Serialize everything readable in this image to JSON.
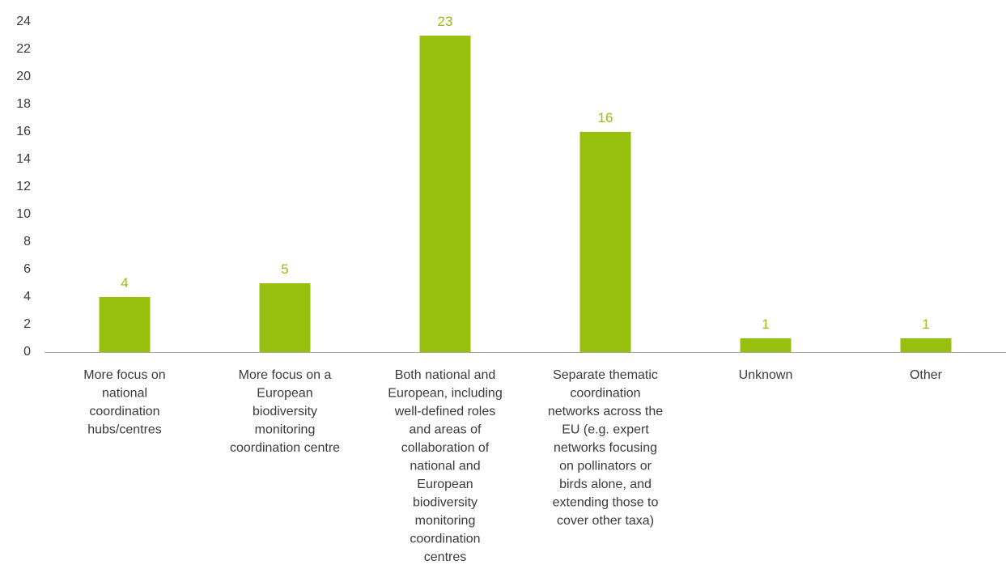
{
  "chart_data": {
    "type": "bar",
    "categories": [
      "More focus on national coordination hubs/centres",
      "More focus on a European biodiversity monitoring coordination centre",
      "Both national and European, including well-defined roles and areas of collaboration of national and European biodiversity monitoring coordination centres",
      "Separate thematic coordination networks across the EU (e.g. expert networks focusing on pollinators or birds alone, and extending those to cover other taxa)",
      "Unknown",
      "Other"
    ],
    "category_lines": [
      [
        "More focus on",
        "national",
        "coordination",
        "hubs/centres"
      ],
      [
        "More focus on a",
        "European",
        "biodiversity",
        "monitoring",
        "coordination centre"
      ],
      [
        "Both national and",
        "European, including",
        "well-defined roles",
        "and areas of",
        "collaboration of",
        "national and",
        "European",
        "biodiversity",
        "monitoring",
        "coordination",
        "centres"
      ],
      [
        "Separate thematic",
        "coordination",
        "networks across the",
        "EU (e.g. expert",
        "networks focusing",
        "on pollinators or",
        "birds alone, and",
        "extending those to",
        "cover other taxa)"
      ],
      [
        "Unknown"
      ],
      [
        "Other"
      ]
    ],
    "values": [
      4,
      5,
      23,
      16,
      1,
      1
    ],
    "ylim": [
      0,
      24
    ],
    "yticks": [
      0,
      2,
      4,
      6,
      8,
      10,
      12,
      14,
      16,
      18,
      20,
      22,
      24
    ],
    "title": "",
    "xlabel": "",
    "ylabel": "",
    "grid": false,
    "data_labels": true,
    "colors": {
      "bar": "#97bf0d",
      "data_label": "#97bf0d",
      "axis": "#a6a6a6",
      "text": "#3a3a3a"
    }
  }
}
